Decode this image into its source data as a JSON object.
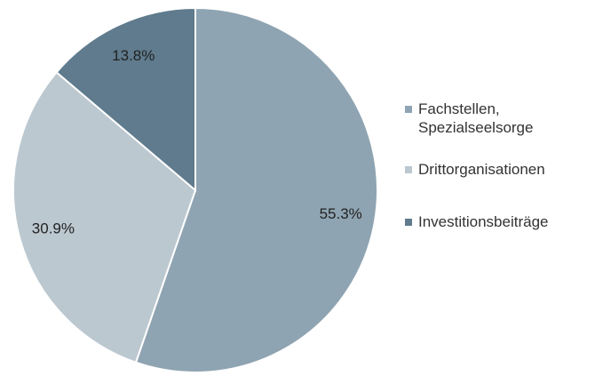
{
  "chart_data": {
    "type": "pie",
    "categories": [
      "Fachstellen, Spezialseelsorge",
      "Drittorganisationen",
      "Investitionsbeiträge"
    ],
    "values": [
      55.3,
      30.9,
      13.8
    ],
    "value_labels": [
      "55.3%",
      "30.9%",
      "13.8%"
    ],
    "colors": [
      "#8fa4b2",
      "#bcc8d0",
      "#5f7b8d"
    ],
    "legend": "right"
  }
}
